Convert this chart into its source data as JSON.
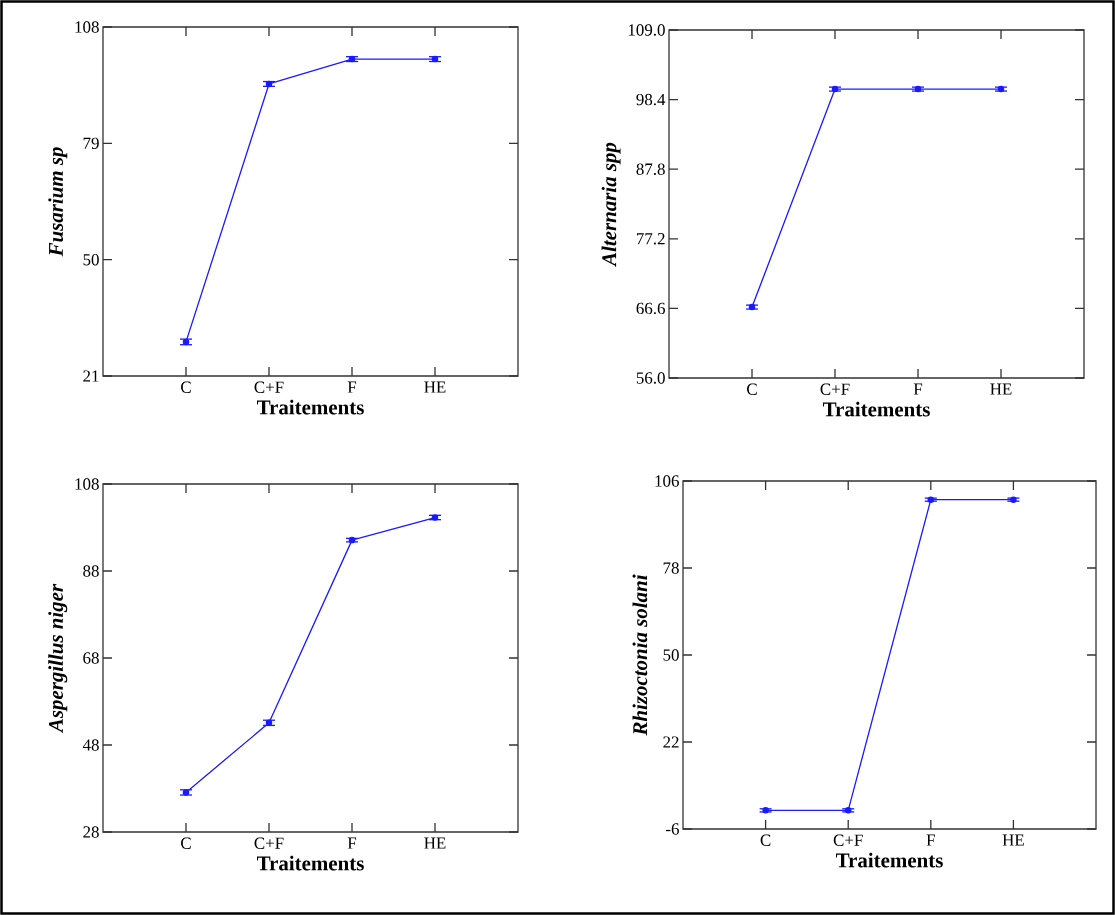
{
  "chart_data": [
    {
      "type": "line",
      "xlabel": "Traitements",
      "ylabel": "Fusarium sp",
      "categories": [
        "C",
        "C+F",
        "F",
        "HE"
      ],
      "values": [
        29.5,
        93.8,
        100,
        100
      ],
      "errors": [
        0.7,
        0.6,
        0.6,
        0.6
      ],
      "color": "#1a1aff",
      "marker": "circle",
      "ylim": [
        21,
        108
      ],
      "yticks": [
        21,
        50,
        79,
        108
      ]
    },
    {
      "type": "line",
      "xlabel": "Traitements",
      "ylabel": "Alternaria spp",
      "categories": [
        "C",
        "C+F",
        "F",
        "HE"
      ],
      "values": [
        66.8,
        100,
        100,
        100
      ],
      "errors": [
        0.3,
        0.3,
        0.3,
        0.3
      ],
      "color": "#1a1aff",
      "marker": "circle",
      "ylim": [
        56,
        109
      ],
      "yticks": [
        {
          "value": 56,
          "label": "56.0"
        },
        66.6,
        77.2,
        87.8,
        98.4,
        {
          "value": 109,
          "label": "109.0"
        }
      ]
    },
    {
      "type": "line",
      "xlabel": "Traitements",
      "ylabel": "Aspergillus niger",
      "categories": [
        "C",
        "C+F",
        "F",
        "HE"
      ],
      "values": [
        37.1,
        53.1,
        95.1,
        100.3
      ],
      "errors": [
        0.6,
        0.6,
        0.4,
        0.5
      ],
      "color": "#1a1aff",
      "marker": "circle",
      "ylim": [
        28,
        108
      ],
      "yticks": [
        28,
        48,
        68,
        88,
        108
      ]
    },
    {
      "type": "line",
      "xlabel": "Traitements",
      "ylabel": "Rhizoctonia solani",
      "categories": [
        "C",
        "C+F",
        "F",
        "HE"
      ],
      "values": [
        0,
        0,
        100,
        100
      ],
      "errors": [
        0.5,
        0.5,
        0.5,
        0.5
      ],
      "color": "#1a1aff",
      "marker": "circle",
      "ylim": [
        -6,
        106
      ],
      "yticks": [
        -6,
        22,
        50,
        78,
        106
      ]
    }
  ]
}
